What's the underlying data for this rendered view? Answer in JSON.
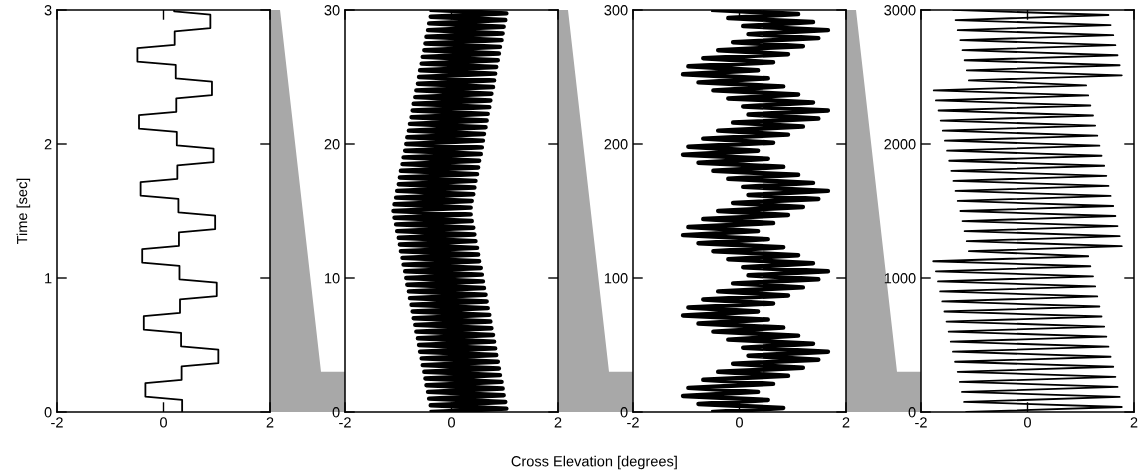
{
  "chart_data": [
    {
      "type": "line",
      "orientation": "horizontal",
      "ylabel": "Time [sec]",
      "xlim": [
        -2,
        2
      ],
      "xticks": [
        -2,
        0,
        2
      ],
      "ylim": [
        0,
        3
      ],
      "yticks": [
        0,
        1,
        2,
        3
      ],
      "grid": false,
      "line_style": "solid",
      "series": [
        {
          "color": "#000000",
          "x": [
            0,
            0.09,
            0.115,
            0.215,
            0.24,
            0.34,
            0.365,
            0.465,
            0.49,
            0.59,
            0.615,
            0.715,
            0.74,
            0.84,
            0.865,
            0.965,
            0.99,
            1.09,
            1.115,
            1.215,
            1.24,
            1.34,
            1.365,
            1.465,
            1.49,
            1.59,
            1.615,
            1.715,
            1.74,
            1.84,
            1.865,
            1.965,
            1.99,
            2.09,
            2.115,
            2.215,
            2.24,
            2.34,
            2.365,
            2.465,
            2.49,
            2.59,
            2.615,
            2.715,
            2.74,
            2.84,
            2.865,
            2.965,
            2.99,
            3.0
          ],
          "values": [
            0.35,
            0.35,
            -0.34,
            -0.34,
            0.34,
            0.34,
            1.03,
            1.03,
            0.33,
            0.33,
            -0.37,
            -0.37,
            0.31,
            0.31,
            1.0,
            1.0,
            0.3,
            0.3,
            -0.4,
            -0.4,
            0.29,
            0.29,
            0.97,
            0.97,
            0.28,
            0.28,
            -0.43,
            -0.43,
            0.26,
            0.26,
            0.94,
            0.94,
            0.25,
            0.25,
            -0.46,
            -0.46,
            0.24,
            0.24,
            0.91,
            0.91,
            0.23,
            0.23,
            -0.49,
            -0.49,
            0.21,
            0.21,
            0.88,
            0.88,
            0.2,
            0.2
          ]
        }
      ]
    },
    {
      "type": "line",
      "orientation": "horizontal",
      "annotations": [
        "Cross Elevation [degrees]"
      ],
      "xlim": [
        -2,
        2
      ],
      "xticks": [
        -2,
        0,
        2
      ],
      "ylim": [
        0,
        30
      ],
      "yticks": [
        0,
        10,
        20,
        30
      ],
      "grid": false,
      "line_style": "solid",
      "series": [
        {
          "color": "#000000",
          "x": [
            0,
            0.25,
            0.5,
            0.75,
            1,
            1.25,
            1.5,
            1.75,
            2,
            2.25,
            2.5,
            2.75,
            3,
            3.25,
            3.5,
            3.75,
            4,
            4.25,
            4.5,
            4.75,
            5,
            5.25,
            5.5,
            5.75,
            6,
            6.25,
            6.5,
            6.75,
            7,
            7.25,
            7.5,
            7.75,
            8,
            8.25,
            8.5,
            8.75,
            9,
            9.25,
            9.5,
            9.75,
            10,
            10.25,
            10.5,
            10.75,
            11,
            11.25,
            11.5,
            11.75,
            12,
            12.25,
            12.5,
            12.75,
            13,
            13.25,
            13.5,
            13.75,
            14,
            14.25,
            14.5,
            14.75,
            15,
            15.25,
            15.5,
            15.75,
            16,
            16.25,
            16.5,
            16.75,
            17,
            17.25,
            17.5,
            17.75,
            18,
            18.25,
            18.5,
            18.75,
            19,
            19.25,
            19.5,
            19.75,
            20,
            20.25,
            20.5,
            20.75,
            21,
            21.25,
            21.5,
            21.75,
            22,
            22.25,
            22.5,
            22.75,
            23,
            23.25,
            23.5,
            23.75,
            24,
            24.25,
            24.5,
            24.75,
            25,
            25.25,
            25.5,
            25.75,
            26,
            26.25,
            26.5,
            26.75,
            27,
            27.25,
            27.5,
            27.75,
            28,
            28.25,
            28.5,
            28.75,
            29,
            29.25,
            29.5,
            29.75,
            30
          ],
          "values": [
            -0.37,
            1.03,
            -0.39,
            1.01,
            -0.42,
            0.98,
            -0.44,
            0.96,
            -0.47,
            0.94,
            -0.49,
            0.91,
            -0.51,
            0.89,
            -0.54,
            0.87,
            -0.56,
            0.84,
            -0.59,
            0.82,
            -0.61,
            0.8,
            -0.63,
            0.78,
            -0.66,
            0.75,
            -0.68,
            0.73,
            -0.71,
            0.71,
            -0.73,
            0.68,
            -0.75,
            0.66,
            -0.78,
            0.64,
            -0.8,
            0.61,
            -0.83,
            0.59,
            -0.85,
            0.57,
            -0.87,
            0.55,
            -0.9,
            0.52,
            -0.92,
            0.5,
            -0.95,
            0.48,
            -0.97,
            0.45,
            -0.99,
            0.43,
            -1.02,
            0.41,
            -1.04,
            0.38,
            -1.07,
            0.36,
            -1.09,
            0.36,
            -1.07,
            0.38,
            -1.04,
            0.41,
            -1.02,
            0.43,
            -0.99,
            0.45,
            -0.97,
            0.48,
            -0.95,
            0.5,
            -0.92,
            0.52,
            -0.9,
            0.55,
            -0.87,
            0.57,
            -0.85,
            0.59,
            -0.83,
            0.61,
            -0.8,
            0.64,
            -0.78,
            0.66,
            -0.75,
            0.68,
            -0.73,
            0.71,
            -0.71,
            0.73,
            -0.68,
            0.75,
            -0.66,
            0.78,
            -0.63,
            0.8,
            -0.61,
            0.82,
            -0.59,
            0.84,
            -0.56,
            0.87,
            -0.54,
            0.89,
            -0.51,
            0.91,
            -0.49,
            0.94,
            -0.47,
            0.96,
            -0.44,
            0.98,
            -0.42,
            1.01,
            -0.39,
            1.03,
            -0.37
          ]
        }
      ]
    },
    {
      "type": "line",
      "orientation": "horizontal",
      "xlim": [
        -2,
        2
      ],
      "xticks": [
        -2,
        0,
        2
      ],
      "ylim": [
        0,
        300
      ],
      "yticks": [
        0,
        100,
        200,
        300
      ],
      "grid": false,
      "series": [
        {
          "color": "#000000",
          "x": [
            0,
            3,
            6,
            9,
            12,
            15,
            18,
            21,
            24,
            27,
            30,
            33,
            36,
            39,
            42,
            45,
            48,
            51,
            54,
            57,
            60,
            63,
            66,
            69,
            72,
            75,
            78,
            81,
            84,
            87,
            90,
            93,
            96,
            99,
            102,
            105,
            108,
            111,
            114,
            117,
            120,
            123,
            126,
            129,
            132,
            135,
            138,
            141,
            144,
            147,
            150,
            153,
            156,
            159,
            162,
            165,
            168,
            171,
            174,
            177,
            180,
            183,
            186,
            189,
            192,
            195,
            198,
            201,
            204,
            207,
            210,
            213,
            216,
            219,
            222,
            225,
            228,
            231,
            234,
            237,
            240,
            243,
            246,
            249,
            252,
            255,
            258,
            261,
            264,
            267,
            270,
            273,
            276,
            279,
            282,
            285,
            288,
            291,
            294,
            297,
            300
          ],
          "values": [
            -0.49,
            0.82,
            -0.77,
            0.53,
            -1.06,
            0.35,
            -0.96,
            0.63,
            -0.68,
            0.91,
            -0.4,
            1.19,
            -0.12,
            1.48,
            0.17,
            1.66,
            0.07,
            1.38,
            -0.21,
            1.1,
            -0.49,
            0.82,
            -0.77,
            0.53,
            -1.06,
            0.35,
            -0.96,
            0.63,
            -0.68,
            0.91,
            -0.4,
            1.19,
            -0.12,
            1.48,
            0.17,
            1.66,
            0.07,
            1.38,
            -0.21,
            1.1,
            -0.49,
            0.82,
            -0.77,
            0.53,
            -1.06,
            0.35,
            -0.96,
            0.63,
            -0.68,
            0.91,
            -0.4,
            1.19,
            -0.12,
            1.48,
            0.17,
            1.66,
            0.07,
            1.38,
            -0.21,
            1.1,
            -0.49,
            0.82,
            -0.77,
            0.53,
            -1.06,
            0.35,
            -0.96,
            0.63,
            -0.68,
            0.91,
            -0.4,
            1.19,
            -0.12,
            1.48,
            0.17,
            1.66,
            0.07,
            1.38,
            -0.21,
            1.1,
            -0.49,
            0.82,
            -0.77,
            0.53,
            -1.06,
            0.35,
            -0.96,
            0.63,
            -0.68,
            0.91,
            -0.4,
            1.19,
            -0.12,
            1.48,
            0.17,
            1.66,
            0.07,
            1.38,
            -0.21,
            1.1,
            -0.49
          ]
        }
      ]
    },
    {
      "type": "line",
      "orientation": "horizontal",
      "xlim": [
        -2,
        2
      ],
      "xticks": [
        -2,
        0,
        2
      ],
      "ylim": [
        0,
        3000
      ],
      "yticks": [
        0,
        1000,
        2000,
        3000
      ],
      "grid": false,
      "line_style": "solid",
      "series": [
        {
          "color": "#000000",
          "x": [
            0,
            37.5,
            75,
            112.5,
            150,
            187.5,
            225,
            262.5,
            300,
            337.5,
            375,
            412.5,
            450,
            487.5,
            525,
            562.5,
            600,
            637.5,
            675,
            712.5,
            750,
            787.5,
            825,
            862.5,
            900,
            937.5,
            975,
            1012.5,
            1050,
            1087.5,
            1125,
            1162.5,
            1200,
            1237.5,
            1275,
            1312.5,
            1350,
            1387.5,
            1425,
            1462.5,
            1500,
            1537.5,
            1575,
            1612.5,
            1650,
            1687.5,
            1725,
            1762.5,
            1800,
            1837.5,
            1875,
            1912.5,
            1950,
            1987.5,
            2025,
            2062.5,
            2100,
            2137.5,
            2175,
            2212.5,
            2250,
            2287.5,
            2325,
            2362.5,
            2400,
            2437.5,
            2475,
            2512.5,
            2550,
            2587.5,
            2625,
            2662.5,
            2700,
            2737.5,
            2775,
            2812.5,
            2850,
            2887.5,
            2925,
            2962.5,
            3000
          ],
          "values": [
            -1.15,
            1.77,
            -1.19,
            1.73,
            -1.23,
            1.69,
            -1.27,
            1.65,
            -1.31,
            1.61,
            -1.36,
            1.56,
            -1.4,
            1.52,
            -1.44,
            1.48,
            -1.48,
            1.44,
            -1.52,
            1.39,
            -1.56,
            1.35,
            -1.6,
            1.31,
            -1.64,
            1.27,
            -1.68,
            1.23,
            -1.72,
            1.18,
            -1.77,
            1.14,
            -1.1,
            1.77,
            -1.14,
            1.73,
            -1.18,
            1.69,
            -1.22,
            1.65,
            -1.26,
            1.61,
            -1.31,
            1.56,
            -1.35,
            1.52,
            -1.39,
            1.48,
            -1.43,
            1.44,
            -1.47,
            1.39,
            -1.51,
            1.35,
            -1.55,
            1.31,
            -1.59,
            1.27,
            -1.63,
            1.23,
            -1.67,
            1.18,
            -1.72,
            1.14,
            -1.76,
            1.1,
            -1.1,
            1.77,
            -1.14,
            1.73,
            -1.18,
            1.69,
            -1.22,
            1.65,
            -1.26,
            1.61,
            -1.31,
            1.56,
            -1.35,
            1.52,
            -1.39
          ]
        }
      ]
    }
  ]
}
